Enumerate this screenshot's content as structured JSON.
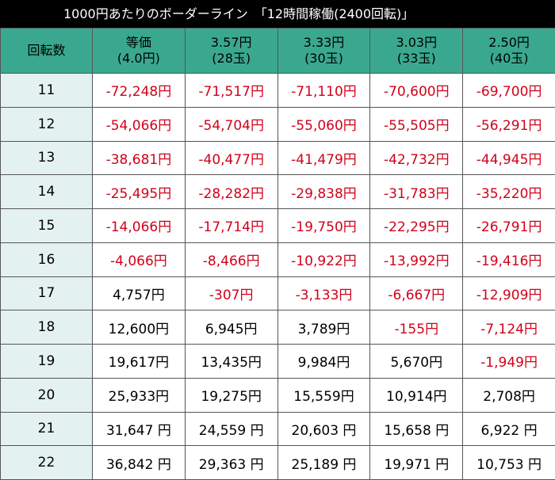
{
  "title": "1000円あたりのボーダーライン　「12時間稼働(2400回転)」",
  "header": {
    "rotation_label": "回転数",
    "columns": [
      {
        "line1": "等価",
        "line2": "(4.0円)"
      },
      {
        "line1": "3.57円",
        "line2": "(28玉)"
      },
      {
        "line1": "3.33円",
        "line2": "(30玉)"
      },
      {
        "line1": "3.03円",
        "line2": "(33玉)"
      },
      {
        "line1": "2.50円",
        "line2": "(40玉)"
      }
    ]
  },
  "rows": [
    {
      "rot": "11",
      "cells": [
        "-72,248円",
        "-71,517円",
        "-71,110円",
        "-70,600円",
        "-69,700円"
      ],
      "neg": [
        true,
        true,
        true,
        true,
        true
      ]
    },
    {
      "rot": "12",
      "cells": [
        "-54,066円",
        "-54,704円",
        "-55,060円",
        "-55,505円",
        "-56,291円"
      ],
      "neg": [
        true,
        true,
        true,
        true,
        true
      ]
    },
    {
      "rot": "13",
      "cells": [
        "-38,681円",
        "-40,477円",
        "-41,479円",
        "-42,732円",
        "-44,945円"
      ],
      "neg": [
        true,
        true,
        true,
        true,
        true
      ]
    },
    {
      "rot": "14",
      "cells": [
        "-25,495円",
        "-28,282円",
        "-29,838円",
        "-31,783円",
        "-35,220円"
      ],
      "neg": [
        true,
        true,
        true,
        true,
        true
      ]
    },
    {
      "rot": "15",
      "cells": [
        "-14,066円",
        "-17,714円",
        "-19,750円",
        "-22,295円",
        "-26,791円"
      ],
      "neg": [
        true,
        true,
        true,
        true,
        true
      ]
    },
    {
      "rot": "16",
      "cells": [
        "-4,066円",
        "-8,466円",
        "-10,922円",
        "-13,992円",
        "-19,416円"
      ],
      "neg": [
        true,
        true,
        true,
        true,
        true
      ]
    },
    {
      "rot": "17",
      "cells": [
        "4,757円",
        "-307円",
        "-3,133円",
        "-6,667円",
        "-12,909円"
      ],
      "neg": [
        false,
        true,
        true,
        true,
        true
      ]
    },
    {
      "rot": "18",
      "cells": [
        "12,600円",
        "6,945円",
        "3,789円",
        "-155円",
        "-7,124円"
      ],
      "neg": [
        false,
        false,
        false,
        true,
        true
      ]
    },
    {
      "rot": "19",
      "cells": [
        "19,617円",
        "13,435円",
        "9,984円",
        "5,670円",
        "-1,949円"
      ],
      "neg": [
        false,
        false,
        false,
        false,
        true
      ]
    },
    {
      "rot": "20",
      "cells": [
        "25,933円",
        "19,275円",
        "15,559円",
        "10,914円",
        "2,708円"
      ],
      "neg": [
        false,
        false,
        false,
        false,
        false
      ]
    },
    {
      "rot": "21",
      "cells": [
        "31,647 円",
        "24,559 円",
        "20,603 円",
        "15,658 円",
        "6,922 円"
      ],
      "neg": [
        false,
        false,
        false,
        false,
        false
      ]
    },
    {
      "rot": "22",
      "cells": [
        "36,842 円",
        "29,363 円",
        "25,189 円",
        "19,971 円",
        "10,753 円"
      ],
      "neg": [
        false,
        false,
        false,
        false,
        false
      ]
    }
  ],
  "colors": {
    "header_bg": "#3aa88e",
    "rot_bg": "#e3f2f1",
    "negative": "#d0021b",
    "title_bg": "#000000"
  }
}
